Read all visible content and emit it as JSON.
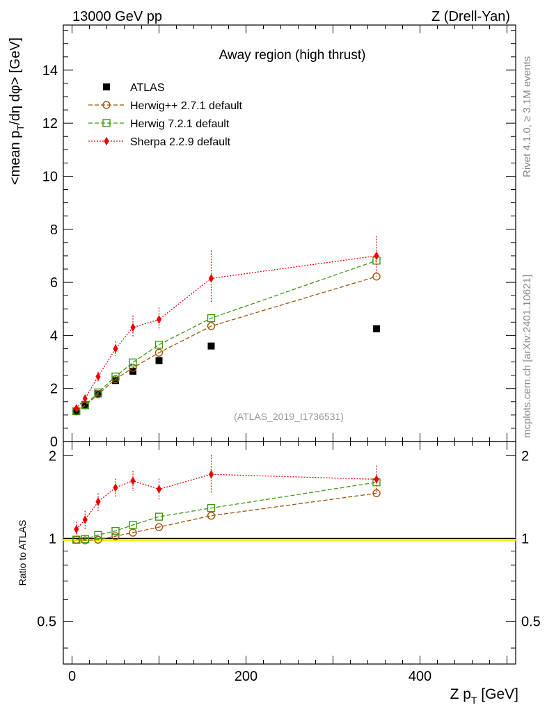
{
  "header": {
    "left": "13000 GeV pp",
    "right": "Z (Drell-Yan)"
  },
  "side_labels": {
    "rivet": "Rivet 4.1.0, ≥ 3.1M events",
    "mcplots": "mcplots.cern.ch [arXiv:2401.10621]"
  },
  "chart_data": [
    {
      "type": "scatter",
      "title": "Away region (high thrust)",
      "watermark": "(ATLAS_2019_I1736531)",
      "ylabel": "<mean p_T/dη dφ> [GeV]",
      "xlim": [
        -10,
        510
      ],
      "ylim": [
        0,
        15.7
      ],
      "y_ticks": [
        "0",
        "2",
        "4",
        "6",
        "8",
        "10",
        "12",
        "14"
      ],
      "legend_position": "top-left",
      "x": [
        5,
        15,
        30,
        50,
        70,
        100,
        160,
        350
      ],
      "series": [
        {
          "name": "ATLAS",
          "color": "#000000",
          "marker": "square-filled",
          "values": [
            1.15,
            1.38,
            1.8,
            2.3,
            2.65,
            3.05,
            3.6,
            4.25
          ]
        },
        {
          "name": "Herwig++ 2.7.1 default",
          "color": "#a0520a",
          "marker": "circle-open",
          "line": "dashed",
          "values": [
            1.14,
            1.36,
            1.78,
            2.35,
            2.78,
            3.35,
            4.35,
            6.22
          ]
        },
        {
          "name": "Herwig 7.2.1 default",
          "color": "#3a9a10",
          "marker": "square-open",
          "line": "dashed",
          "values": [
            1.14,
            1.37,
            1.85,
            2.45,
            2.98,
            3.65,
            4.65,
            6.82
          ]
        },
        {
          "name": "Sherpa 2.2.9 default",
          "color": "#ee0000",
          "marker": "diamond-filled",
          "line": "dotted",
          "values": [
            1.25,
            1.62,
            2.45,
            3.5,
            4.3,
            4.6,
            6.15,
            7.0
          ],
          "err_low": [
            0.1,
            0.12,
            0.18,
            0.28,
            0.35,
            0.4,
            0.9,
            0.7
          ],
          "err_high": [
            0.1,
            0.12,
            0.18,
            0.28,
            0.45,
            0.45,
            1.05,
            0.75
          ]
        }
      ]
    },
    {
      "type": "scatter",
      "ylabel": "Ratio to ATLAS",
      "xlabel": "Z p_T [GeV]",
      "xlim": [
        -10,
        510
      ],
      "ylim": [
        0.35,
        2.25
      ],
      "y_ticks": [
        "0.5",
        "1",
        "2"
      ],
      "x_ticks": [
        "0",
        "200",
        "400"
      ],
      "reference_band": {
        "value": 1.0,
        "half_width": 0.01,
        "line_color": "#000000",
        "band_color": "#f0f000"
      },
      "x": [
        5,
        15,
        30,
        50,
        70,
        100,
        160,
        350
      ],
      "series": [
        {
          "name": "Herwig++ 2.7.1 default",
          "color": "#a0520a",
          "marker": "circle-open",
          "line": "dashed",
          "values": [
            0.99,
            0.985,
            0.99,
            1.02,
            1.05,
            1.1,
            1.21,
            1.46
          ]
        },
        {
          "name": "Herwig 7.2.1 default",
          "color": "#3a9a10",
          "marker": "square-open",
          "line": "dashed",
          "values": [
            0.99,
            0.995,
            1.03,
            1.065,
            1.12,
            1.2,
            1.29,
            1.6
          ]
        },
        {
          "name": "Sherpa 2.2.9 default",
          "color": "#ee0000",
          "marker": "diamond-filled",
          "line": "dotted",
          "values": [
            1.08,
            1.17,
            1.36,
            1.53,
            1.62,
            1.51,
            1.71,
            1.64
          ],
          "err_low": [
            0.07,
            0.09,
            0.1,
            0.12,
            0.13,
            0.13,
            0.25,
            0.18
          ],
          "err_high": [
            0.07,
            0.09,
            0.1,
            0.12,
            0.14,
            0.14,
            0.3,
            0.2
          ]
        }
      ]
    }
  ]
}
